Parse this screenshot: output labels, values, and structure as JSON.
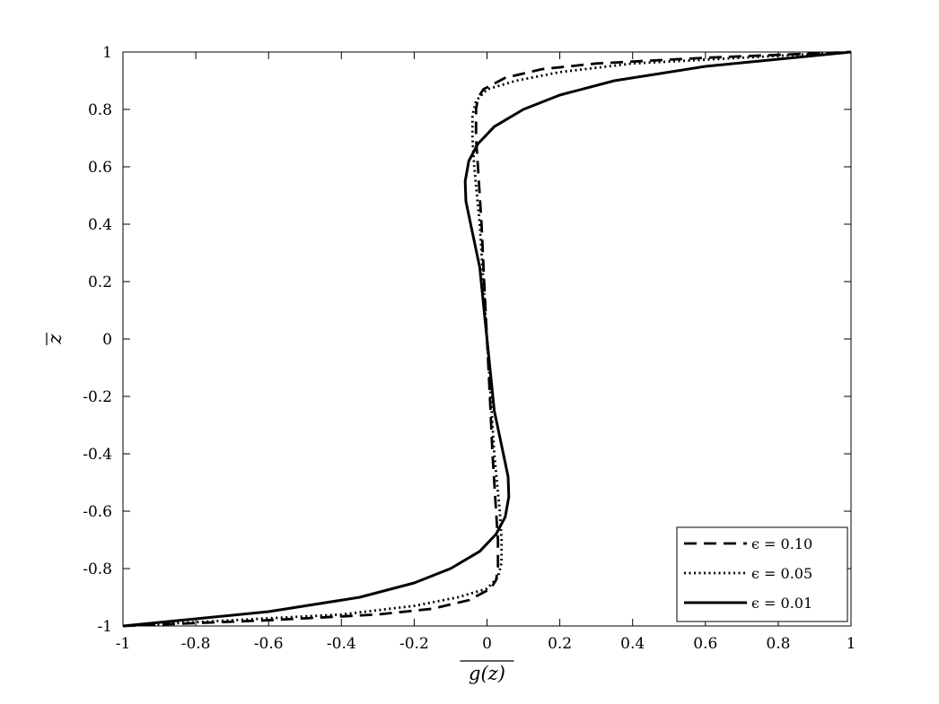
{
  "chart_data": {
    "type": "line",
    "title": "",
    "xlabel": "g(z)",
    "ylabel": "z",
    "xlim": [
      -1,
      1
    ],
    "ylim": [
      -1,
      1
    ],
    "xticks": [
      "-1",
      "-0.8",
      "-0.6",
      "-0.4",
      "-0.2",
      "0",
      "0.2",
      "0.4",
      "0.6",
      "0.8",
      "1"
    ],
    "yticks": [
      "-1",
      "-0.8",
      "-0.6",
      "-0.4",
      "-0.2",
      "0",
      "0.2",
      "0.4",
      "0.6",
      "0.8",
      "1"
    ],
    "grid": false,
    "legend_position": "bottom-right",
    "series": [
      {
        "name": "ϵ = 0.10",
        "style": "dashed",
        "color": "#000000",
        "points": [
          [
            -1.0,
            -1.0
          ],
          [
            -0.6,
            -0.98
          ],
          [
            -0.3,
            -0.96
          ],
          [
            -0.15,
            -0.94
          ],
          [
            -0.05,
            -0.91
          ],
          [
            0.01,
            -0.87
          ],
          [
            0.025,
            -0.84
          ],
          [
            0.03,
            -0.8
          ],
          [
            0.03,
            -0.7
          ],
          [
            0.025,
            -0.6
          ],
          [
            0.015,
            -0.4
          ],
          [
            0.008,
            -0.2
          ],
          [
            0.0,
            0.0
          ],
          [
            -0.008,
            0.2
          ],
          [
            -0.015,
            0.4
          ],
          [
            -0.025,
            0.6
          ],
          [
            -0.03,
            0.7
          ],
          [
            -0.03,
            0.8
          ],
          [
            -0.025,
            0.84
          ],
          [
            -0.01,
            0.87
          ],
          [
            0.05,
            0.91
          ],
          [
            0.15,
            0.94
          ],
          [
            0.3,
            0.96
          ],
          [
            0.6,
            0.98
          ],
          [
            1.0,
            1.0
          ]
        ]
      },
      {
        "name": "ϵ = 0.05",
        "style": "dotted",
        "color": "#000000",
        "points": [
          [
            -1.0,
            -1.0
          ],
          [
            -0.7,
            -0.98
          ],
          [
            -0.4,
            -0.96
          ],
          [
            -0.2,
            -0.93
          ],
          [
            -0.08,
            -0.9
          ],
          [
            0.0,
            -0.87
          ],
          [
            0.03,
            -0.83
          ],
          [
            0.04,
            -0.78
          ],
          [
            0.04,
            -0.7
          ],
          [
            0.035,
            -0.6
          ],
          [
            0.02,
            -0.4
          ],
          [
            0.01,
            -0.2
          ],
          [
            0.0,
            0.0
          ],
          [
            -0.01,
            0.2
          ],
          [
            -0.02,
            0.4
          ],
          [
            -0.035,
            0.6
          ],
          [
            -0.04,
            0.7
          ],
          [
            -0.04,
            0.78
          ],
          [
            -0.03,
            0.83
          ],
          [
            0.0,
            0.87
          ],
          [
            0.08,
            0.9
          ],
          [
            0.2,
            0.93
          ],
          [
            0.4,
            0.96
          ],
          [
            0.7,
            0.98
          ],
          [
            1.0,
            1.0
          ]
        ]
      },
      {
        "name": "ϵ = 0.01",
        "style": "solid",
        "color": "#000000",
        "points": [
          [
            -1.0,
            -1.0
          ],
          [
            -0.6,
            -0.95
          ],
          [
            -0.35,
            -0.9
          ],
          [
            -0.2,
            -0.85
          ],
          [
            -0.1,
            -0.8
          ],
          [
            -0.02,
            -0.74
          ],
          [
            0.025,
            -0.68
          ],
          [
            0.05,
            -0.62
          ],
          [
            0.06,
            -0.55
          ],
          [
            0.058,
            -0.48
          ],
          [
            0.045,
            -0.4
          ],
          [
            0.02,
            -0.25
          ],
          [
            0.0,
            0.0
          ],
          [
            -0.02,
            0.25
          ],
          [
            -0.045,
            0.4
          ],
          [
            -0.058,
            0.48
          ],
          [
            -0.06,
            0.55
          ],
          [
            -0.05,
            0.62
          ],
          [
            -0.025,
            0.68
          ],
          [
            0.02,
            0.74
          ],
          [
            0.1,
            0.8
          ],
          [
            0.2,
            0.85
          ],
          [
            0.35,
            0.9
          ],
          [
            0.6,
            0.95
          ],
          [
            1.0,
            1.0
          ]
        ]
      }
    ]
  }
}
